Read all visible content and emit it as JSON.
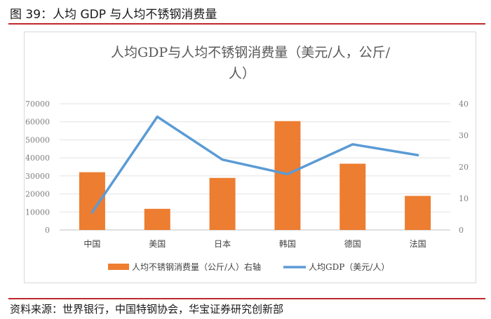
{
  "figure_title": "图 39：人均 GDP 与人均不锈钢消费量",
  "source": "资料来源：世界银行，中国特钢协会，华宝证券研究创新部",
  "colors": {
    "bar": "#ED7D31",
    "line": "#5B9BD5",
    "accent": "#C0282D"
  },
  "chart_data": {
    "type": "bar",
    "title_line1": "人均GDP与人均不锈钢消费量（美元/人，公斤/",
    "title_line2": "人）",
    "categories": [
      "中国",
      "美国",
      "日本",
      "韩国",
      "德国",
      "法国"
    ],
    "series": [
      {
        "name": "人均不锈钢消费量（公斤/人）右轴",
        "type": "bar",
        "axis": "right",
        "values": [
          18.3,
          6.7,
          16.5,
          34.5,
          21.0,
          10.8
        ]
      },
      {
        "name": "人均GDP（美元/人）",
        "type": "line",
        "axis": "left",
        "values": [
          9800,
          62800,
          39000,
          31000,
          47500,
          41500
        ]
      }
    ],
    "left_axis": {
      "min": 0,
      "max": 70000,
      "ticks": [
        "0",
        "10000",
        "20000",
        "30000",
        "40000",
        "50000",
        "60000",
        "70000"
      ]
    },
    "right_axis": {
      "min": 0,
      "max": 40,
      "ticks": [
        "0",
        "10",
        "20",
        "30",
        "40"
      ]
    },
    "grid": true,
    "legend_position": "bottom"
  }
}
